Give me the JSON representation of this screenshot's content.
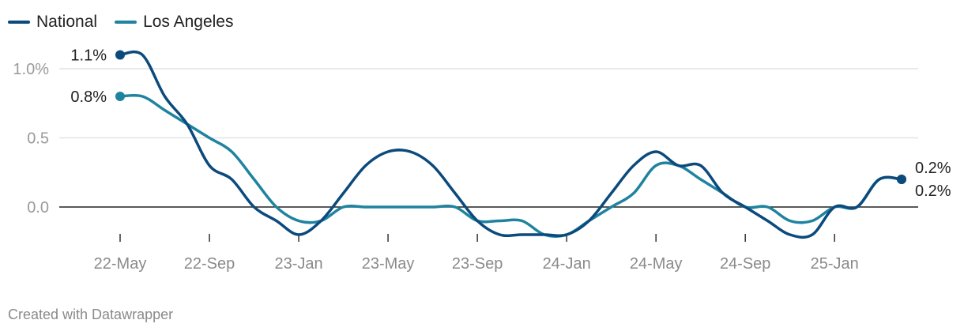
{
  "chart_data": {
    "type": "line",
    "title": "",
    "xlabel": "",
    "ylabel": "",
    "ylim": [
      -0.45,
      1.3
    ],
    "y_ticks": [
      {
        "value": 1.0,
        "label": "1.0%"
      },
      {
        "value": 0.5,
        "label": "0.5"
      },
      {
        "value": 0.0,
        "label": "0.0"
      }
    ],
    "x_ticks": [
      {
        "x": 0,
        "label": "22-May"
      },
      {
        "x": 4,
        "label": "22-Sep"
      },
      {
        "x": 8,
        "label": "23-Jan"
      },
      {
        "x": 12,
        "label": "23-May"
      },
      {
        "x": 16,
        "label": "23-Sep"
      },
      {
        "x": 20,
        "label": "24-Jan"
      },
      {
        "x": 24,
        "label": "24-May"
      },
      {
        "x": 28,
        "label": "24-Sep"
      },
      {
        "x": 32,
        "label": "25-Jan"
      }
    ],
    "x_range": [
      0,
      35
    ],
    "grid": true,
    "legend_position": "top-left",
    "series": [
      {
        "name": "National",
        "color": "#0b4a7d",
        "x": [
          0,
          1,
          2,
          3,
          4,
          5,
          6,
          7,
          8,
          9,
          10,
          11,
          12,
          13,
          14,
          15,
          16,
          17,
          18,
          19,
          20,
          21,
          22,
          23,
          24,
          25,
          26,
          27,
          28,
          29,
          30,
          31,
          32,
          33,
          34,
          35
        ],
        "values": [
          1.1,
          1.1,
          0.8,
          0.6,
          0.3,
          0.2,
          0.0,
          -0.1,
          -0.2,
          -0.1,
          0.1,
          0.3,
          0.4,
          0.4,
          0.3,
          0.1,
          -0.1,
          -0.2,
          -0.2,
          -0.2,
          -0.2,
          -0.1,
          0.1,
          0.3,
          0.4,
          0.3,
          0.3,
          0.1,
          0.0,
          -0.1,
          -0.2,
          -0.2,
          0.0,
          0.0,
          0.2,
          0.2
        ],
        "end_labels": {
          "first": "1.1%",
          "last": "0.2%"
        }
      },
      {
        "name": "Los Angeles",
        "color": "#1f83a0",
        "x": [
          0,
          1,
          2,
          3,
          4,
          5,
          6,
          7,
          8,
          9,
          10,
          11,
          12,
          13,
          14,
          15,
          16,
          17,
          18,
          19,
          20,
          21,
          22,
          23,
          24,
          25,
          26,
          27,
          28,
          29,
          30,
          31,
          32,
          33,
          34,
          35
        ],
        "values": [
          0.8,
          0.8,
          0.7,
          0.6,
          0.5,
          0.4,
          0.2,
          0.0,
          -0.1,
          -0.1,
          0.0,
          0.0,
          0.0,
          0.0,
          0.0,
          0.0,
          -0.1,
          -0.1,
          -0.1,
          -0.2,
          -0.2,
          -0.1,
          0.0,
          0.1,
          0.3,
          0.3,
          0.2,
          0.1,
          0.0,
          0.0,
          -0.1,
          -0.1,
          0.0,
          0.0,
          0.2,
          0.2
        ],
        "end_labels": {
          "first": "0.8%",
          "last": "0.2%"
        }
      }
    ]
  },
  "footer": {
    "credit": "Created with Datawrapper"
  }
}
